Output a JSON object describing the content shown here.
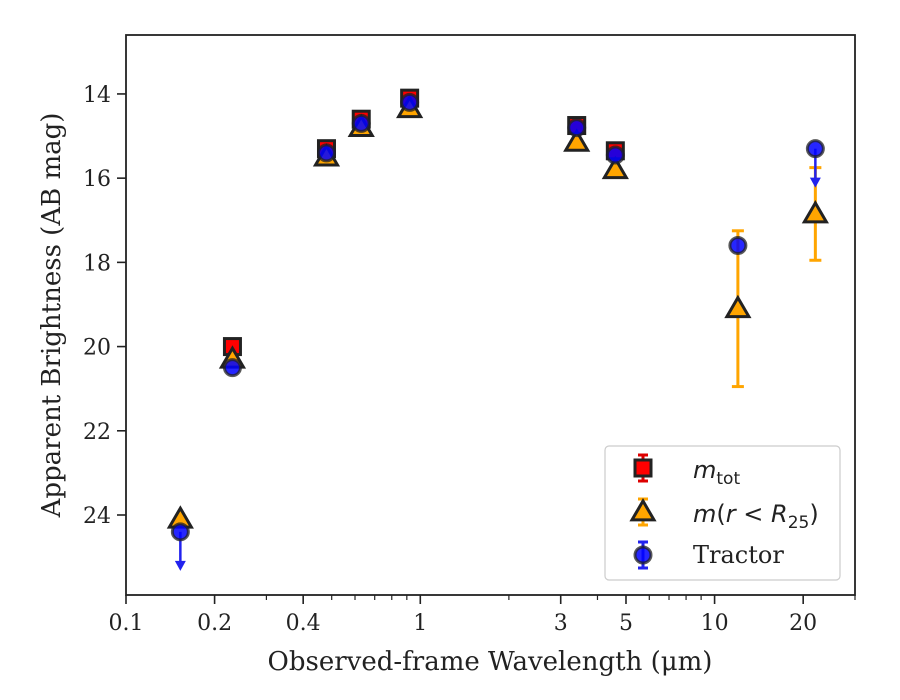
{
  "chart_data": {
    "type": "scatter",
    "xlabel": "Observed-frame Wavelength (μm)",
    "ylabel": "Apparent Brightness (AB mag)",
    "xscale": "log",
    "xlim": [
      0.1,
      30
    ],
    "ylim": [
      25.9,
      12.6
    ],
    "y_inverted": true,
    "xticks": [
      {
        "value": 0.1,
        "label": "0.1"
      },
      {
        "value": 0.2,
        "label": "0.2"
      },
      {
        "value": 0.4,
        "label": "0.4"
      },
      {
        "value": 1,
        "label": "1"
      },
      {
        "value": 3,
        "label": "3"
      },
      {
        "value": 5,
        "label": "5"
      },
      {
        "value": 10,
        "label": "10"
      },
      {
        "value": 20,
        "label": "20"
      }
    ],
    "yticks": [
      14,
      16,
      18,
      20,
      22,
      24
    ],
    "legend_position": "lower right",
    "series": [
      {
        "name": "m_tot",
        "marker": "square",
        "color": "#ff0000",
        "error_color": "#dd0000",
        "points": [
          {
            "x": 0.23,
            "y": 20.0
          },
          {
            "x": 0.48,
            "y": 15.3
          },
          {
            "x": 0.63,
            "y": 14.6
          },
          {
            "x": 0.92,
            "y": 14.1
          },
          {
            "x": 3.4,
            "y": 14.75
          },
          {
            "x": 4.6,
            "y": 15.35
          }
        ]
      },
      {
        "name": "m(r < R25)",
        "marker": "triangle",
        "color": "#ffa500",
        "error_color": "#ffa500",
        "points": [
          {
            "x": 0.153,
            "y": 24.1
          },
          {
            "x": 0.23,
            "y": 20.3
          },
          {
            "x": 0.48,
            "y": 15.5
          },
          {
            "x": 0.63,
            "y": 14.8
          },
          {
            "x": 0.92,
            "y": 14.35
          },
          {
            "x": 3.4,
            "y": 15.15
          },
          {
            "x": 4.6,
            "y": 15.8
          },
          {
            "x": 12.0,
            "y": 19.1,
            "err_low": 17.25,
            "err_high": 20.95
          },
          {
            "x": 22.0,
            "y": 16.85,
            "err_low": 15.75,
            "err_high": 17.95
          }
        ]
      },
      {
        "name": "Tractor",
        "marker": "circle",
        "color": "#0000ff",
        "error_color": "#2222ee",
        "points": [
          {
            "x": 0.153,
            "y": 24.4,
            "upper_limit": true
          },
          {
            "x": 0.23,
            "y": 20.5
          },
          {
            "x": 0.48,
            "y": 15.4
          },
          {
            "x": 0.63,
            "y": 14.7
          },
          {
            "x": 0.92,
            "y": 14.2
          },
          {
            "x": 3.4,
            "y": 14.8
          },
          {
            "x": 4.6,
            "y": 15.45
          },
          {
            "x": 12.0,
            "y": 17.6
          },
          {
            "x": 22.0,
            "y": 15.3,
            "upper_limit": true
          }
        ]
      }
    ]
  }
}
